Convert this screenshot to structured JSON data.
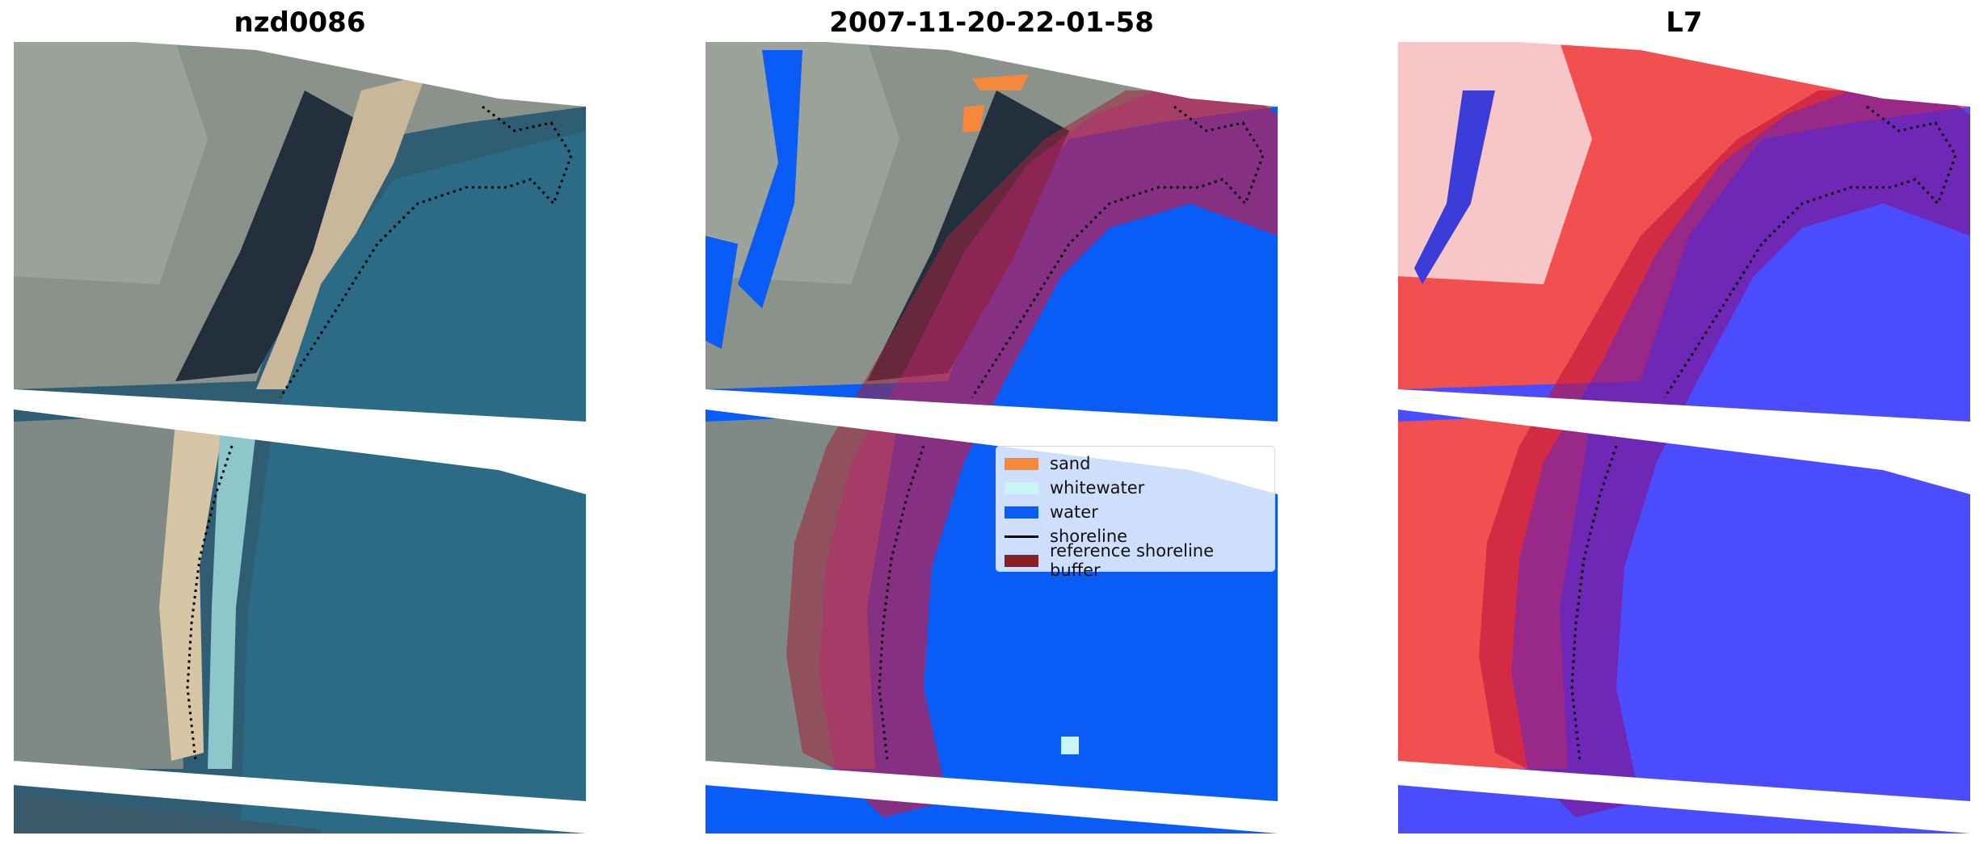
{
  "panels": [
    {
      "title": "nzd0086"
    },
    {
      "title": "2007-11-20-22-01-58"
    },
    {
      "title": "L7"
    }
  ],
  "legend": {
    "items": [
      {
        "label": "sand",
        "color": "#f5883a",
        "kind": "patch"
      },
      {
        "label": "whitewater",
        "color": "#c9f5f5",
        "kind": "patch"
      },
      {
        "label": "water",
        "color": "#0a5cf6",
        "kind": "patch"
      },
      {
        "label": "shoreline",
        "color": "#000000",
        "kind": "line"
      },
      {
        "label": "reference shoreline buffer",
        "color": "#8b1f24",
        "kind": "patch"
      }
    ]
  },
  "colors": {
    "ocean": "#2e5f76",
    "land": "#8b938c",
    "dark_vegetation": "#23313f",
    "beach": "#cdbb9a",
    "water_class": "#0a5cf6",
    "buffer": "#a0233a",
    "index_water": "#4c4cff",
    "index_land": "#f25050"
  }
}
